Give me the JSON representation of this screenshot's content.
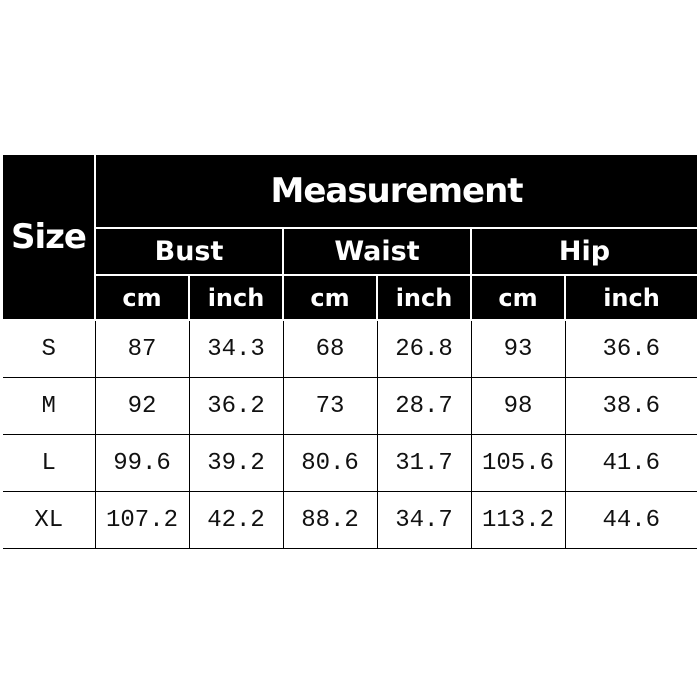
{
  "header": {
    "size_label": "Size",
    "title": "Measurement",
    "groups": [
      "Bust",
      "Waist",
      "Hip"
    ],
    "units": [
      "cm",
      "inch",
      "cm",
      "inch",
      "cm",
      "inch"
    ]
  },
  "rows": [
    {
      "size": "S",
      "values": [
        "87",
        "34.3",
        "68",
        "26.8",
        "93",
        "36.6"
      ]
    },
    {
      "size": "M",
      "values": [
        "92",
        "36.2",
        "73",
        "28.7",
        "98",
        "38.6"
      ]
    },
    {
      "size": "L",
      "values": [
        "99.6",
        "39.2",
        "80.6",
        "31.7",
        "105.6",
        "41.6"
      ]
    },
    {
      "size": "XL",
      "values": [
        "107.2",
        "42.2",
        "88.2",
        "34.7",
        "113.2",
        "44.6"
      ]
    }
  ]
}
